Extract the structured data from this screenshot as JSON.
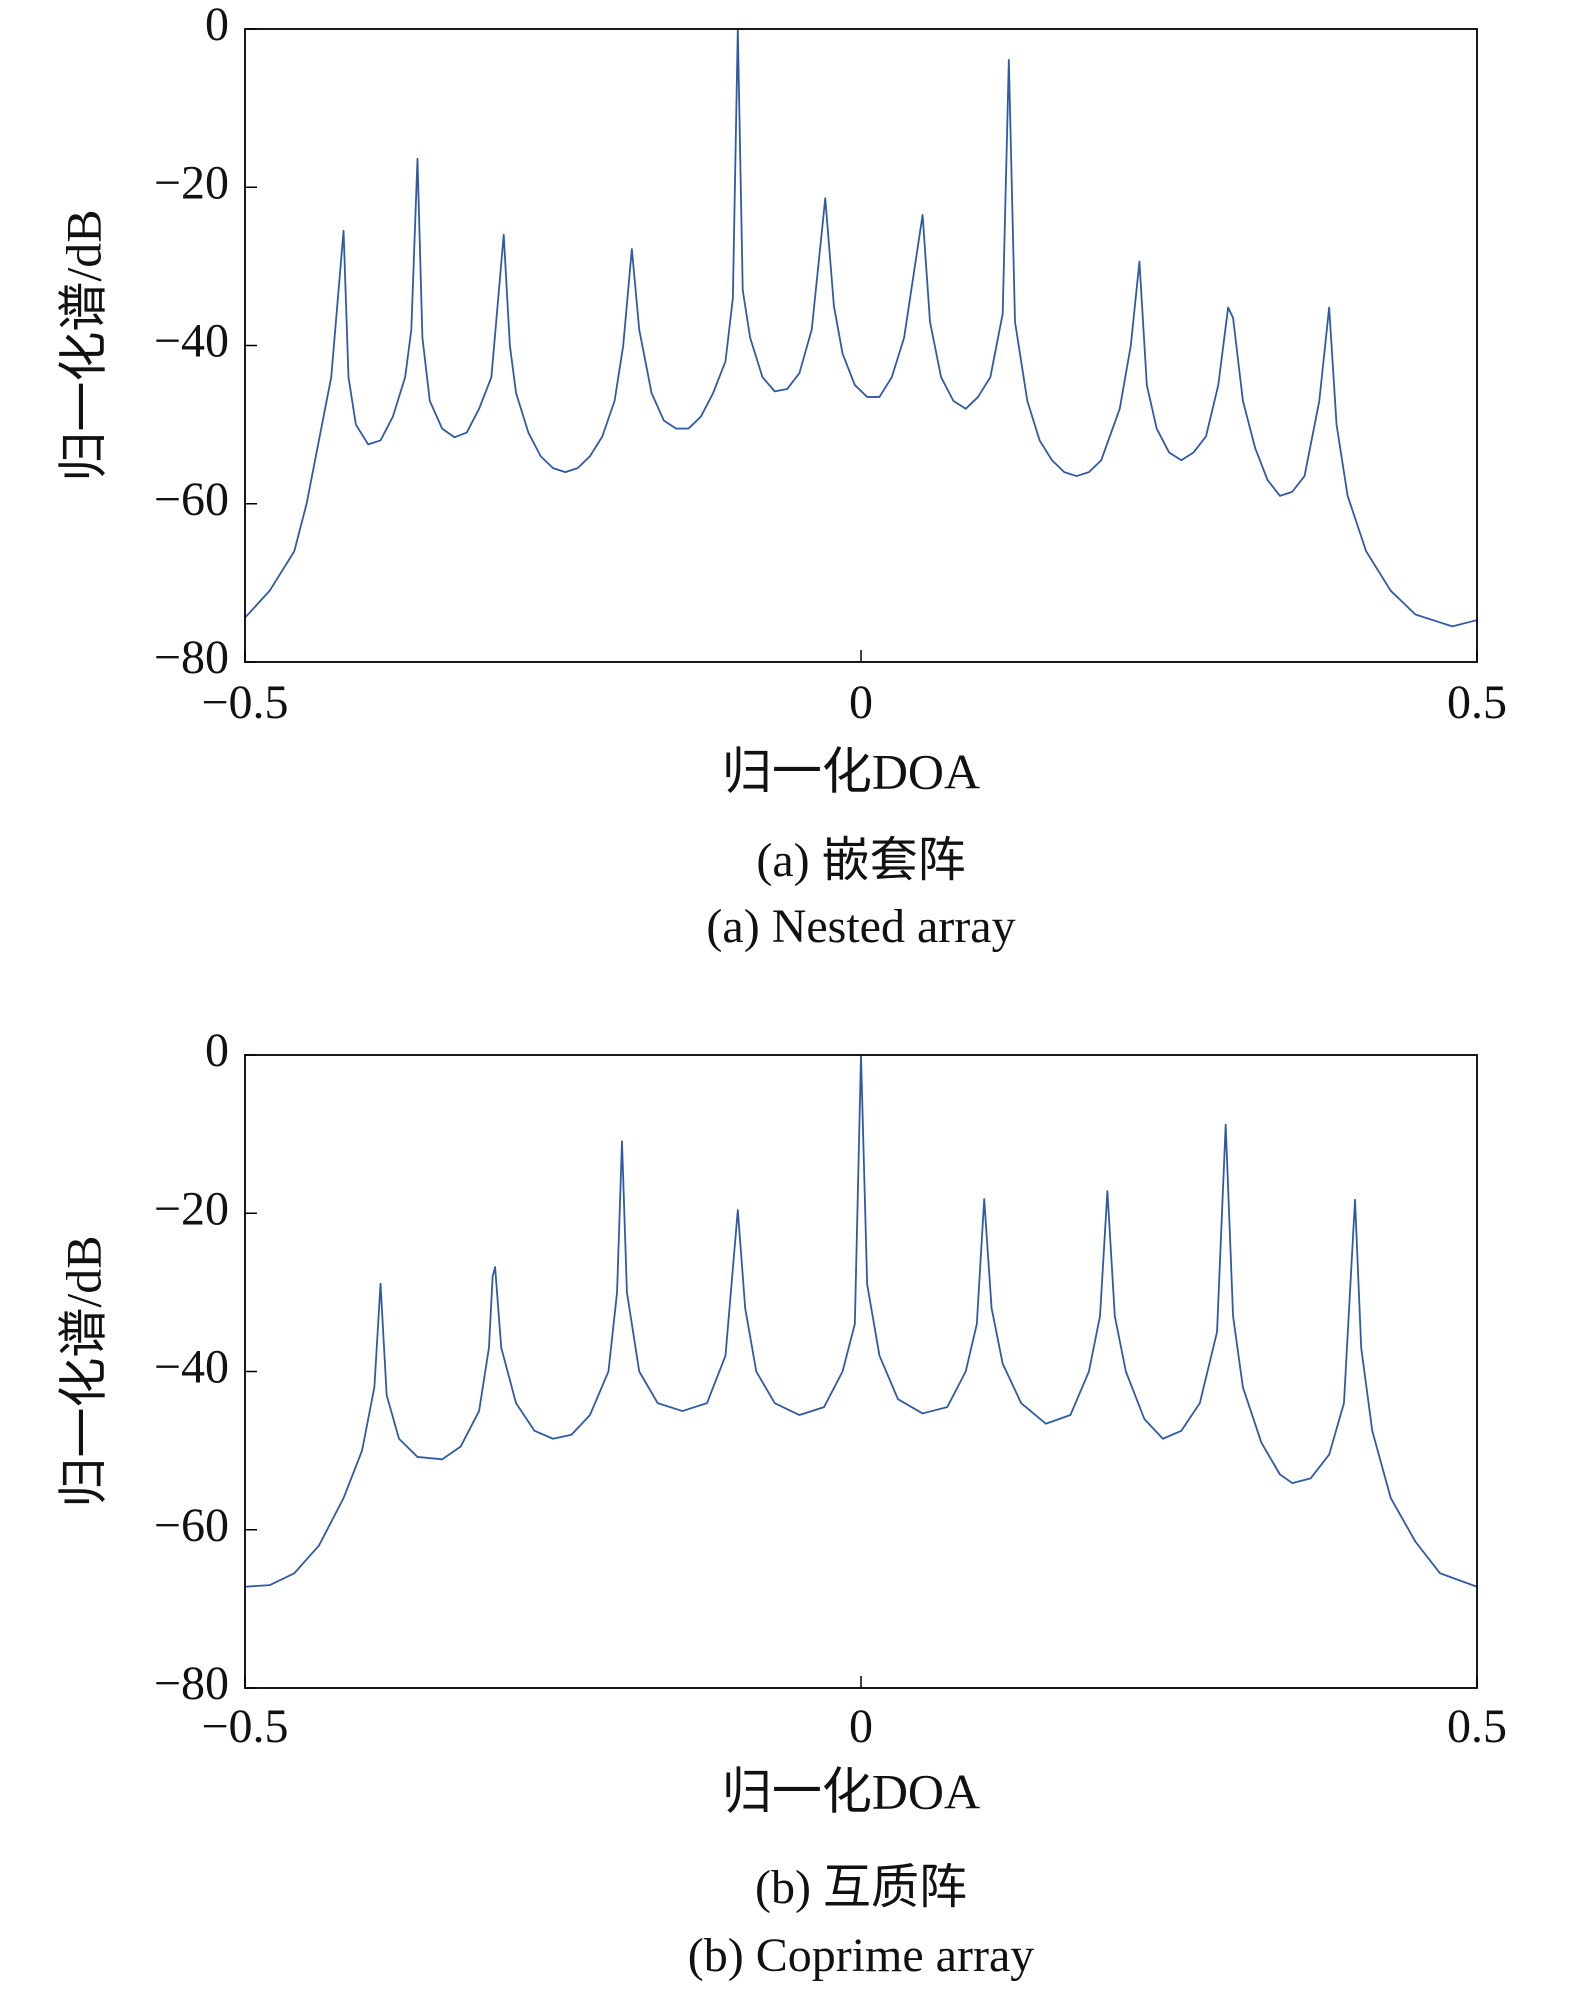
{
  "chart_data": [
    {
      "type": "line",
      "y_label": "归一化谱/dB",
      "x_label": "归一化DOA",
      "caption": [
        "(a) 嵌套阵",
        "(a) Nested array"
      ],
      "color": "#2f5ba6",
      "xlim": [
        -0.5,
        0.5
      ],
      "ylim": [
        -80,
        0
      ],
      "xticks": [
        {
          "value": -0.5,
          "label": "−0.5"
        },
        0,
        0.5
      ],
      "yticks": [
        {
          "value": -80,
          "label": "−80"
        },
        {
          "value": -60,
          "label": "−60"
        },
        {
          "value": -40,
          "label": "−40"
        },
        {
          "value": -20,
          "label": "−20"
        },
        0
      ],
      "x": [
        -0.5,
        -0.48,
        -0.46,
        -0.45,
        -0.44,
        -0.43,
        -0.42,
        -0.416,
        -0.41,
        -0.4,
        -0.39,
        -0.38,
        -0.37,
        -0.365,
        -0.36,
        -0.356,
        -0.35,
        -0.34,
        -0.33,
        -0.32,
        -0.31,
        -0.3,
        -0.29,
        -0.285,
        -0.28,
        -0.27,
        -0.26,
        -0.25,
        -0.24,
        -0.23,
        -0.22,
        -0.21,
        -0.2,
        -0.193,
        -0.186,
        -0.18,
        -0.17,
        -0.16,
        -0.15,
        -0.14,
        -0.13,
        -0.12,
        -0.11,
        -0.104,
        -0.1,
        -0.096,
        -0.09,
        -0.08,
        -0.07,
        -0.06,
        -0.05,
        -0.04,
        -0.029,
        -0.022,
        -0.015,
        -0.005,
        0.005,
        0.015,
        0.025,
        0.035,
        0.05,
        0.056,
        0.065,
        0.075,
        0.085,
        0.095,
        0.105,
        0.115,
        0.12,
        0.125,
        0.135,
        0.145,
        0.155,
        0.165,
        0.175,
        0.185,
        0.195,
        0.21,
        0.219,
        0.226,
        0.232,
        0.24,
        0.25,
        0.26,
        0.27,
        0.28,
        0.29,
        0.298,
        0.302,
        0.31,
        0.32,
        0.33,
        0.34,
        0.35,
        0.36,
        0.372,
        0.38,
        0.386,
        0.395,
        0.41,
        0.43,
        0.45,
        0.47,
        0.48,
        0.5
      ],
      "values": [
        -74.4,
        -71,
        -66,
        -60,
        -52,
        -44,
        -25.5,
        -44,
        -50,
        -52.5,
        -52,
        -49,
        -44,
        -38,
        -16.4,
        -39,
        -47,
        -50.5,
        -51.6,
        -51,
        -48,
        -44,
        -26,
        -40,
        -46,
        -51,
        -54,
        -55.5,
        -56,
        -55.5,
        -54,
        -51.5,
        -47,
        -40,
        -27.8,
        -38,
        -46,
        -49.5,
        -50.5,
        -50.5,
        -49,
        -46,
        -42,
        -34,
        0,
        -33,
        -39,
        -44,
        -45.8,
        -45.5,
        -43.5,
        -38,
        -21.4,
        -35,
        -41,
        -45,
        -46.5,
        -46.5,
        -44,
        -39,
        -23.5,
        -37,
        -44,
        -47,
        -48,
        -46.5,
        -44,
        -36,
        -3.9,
        -37,
        -47,
        -52,
        -54.5,
        -56,
        -56.5,
        -56,
        -54.5,
        -48,
        -40,
        -29.4,
        -45,
        -50.5,
        -53.5,
        -54.5,
        -53.5,
        -51.5,
        -45,
        -35.2,
        -36.5,
        -47,
        -53,
        -57,
        -59,
        -58.5,
        -56.5,
        -47,
        -35.2,
        -50,
        -59,
        -66,
        -71,
        -74,
        -75,
        -75.5,
        -74.7
      ]
    },
    {
      "type": "line",
      "y_label": "归一化谱/dB",
      "x_label": "归一化DOA",
      "caption": [
        "(b) 互质阵",
        "(b) Coprime array"
      ],
      "color": "#2f5ba6",
      "xlim": [
        -0.5,
        0.5
      ],
      "ylim": [
        -80,
        0
      ],
      "xticks": [
        {
          "value": -0.5,
          "label": "−0.5"
        },
        0,
        0.5
      ],
      "yticks": [
        {
          "value": -80,
          "label": "−80"
        },
        {
          "value": -60,
          "label": "−60"
        },
        {
          "value": -40,
          "label": "−40"
        },
        {
          "value": -20,
          "label": "−20"
        },
        0
      ],
      "x": [
        -0.5,
        -0.48,
        -0.46,
        -0.44,
        -0.42,
        -0.405,
        -0.395,
        -0.39,
        -0.385,
        -0.375,
        -0.36,
        -0.34,
        -0.325,
        -0.31,
        -0.302,
        -0.299,
        -0.297,
        -0.292,
        -0.28,
        -0.265,
        -0.25,
        -0.235,
        -0.22,
        -0.205,
        -0.198,
        -0.194,
        -0.19,
        -0.18,
        -0.165,
        -0.145,
        -0.125,
        -0.11,
        -0.1,
        -0.094,
        -0.085,
        -0.07,
        -0.05,
        -0.03,
        -0.015,
        -0.005,
        0,
        0.005,
        0.015,
        0.03,
        0.05,
        0.07,
        0.085,
        0.094,
        0.1,
        0.106,
        0.115,
        0.13,
        0.15,
        0.17,
        0.185,
        0.194,
        0.2,
        0.206,
        0.215,
        0.23,
        0.245,
        0.26,
        0.275,
        0.289,
        0.296,
        0.302,
        0.31,
        0.325,
        0.34,
        0.35,
        0.365,
        0.38,
        0.392,
        0.401,
        0.406,
        0.415,
        0.43,
        0.45,
        0.47,
        0.5
      ],
      "values": [
        -67.2,
        -67,
        -65.5,
        -62,
        -56,
        -50,
        -42,
        -28.9,
        -43,
        -48.5,
        -50.8,
        -51.1,
        -49.5,
        -45,
        -37,
        -28,
        -26.8,
        -37,
        -44,
        -47.5,
        -48.5,
        -48,
        -45.5,
        -40,
        -30,
        -10.9,
        -30,
        -40,
        -44,
        -45,
        -44,
        -38,
        -19.6,
        -32,
        -40,
        -44,
        -45.5,
        -44.5,
        -40,
        -34,
        0,
        -29,
        -38,
        -43.5,
        -45.3,
        -44.5,
        -40,
        -34,
        -18.2,
        -32,
        -39,
        -44,
        -46.6,
        -45.5,
        -40,
        -33,
        -17.2,
        -33,
        -40,
        -46,
        -48.5,
        -47.5,
        -44,
        -35,
        -8.8,
        -33,
        -42,
        -49,
        -53,
        -54.1,
        -53.5,
        -50.5,
        -44,
        -18.3,
        -37,
        -47.5,
        -56,
        -61.5,
        -65.5,
        -67.2
      ]
    }
  ]
}
